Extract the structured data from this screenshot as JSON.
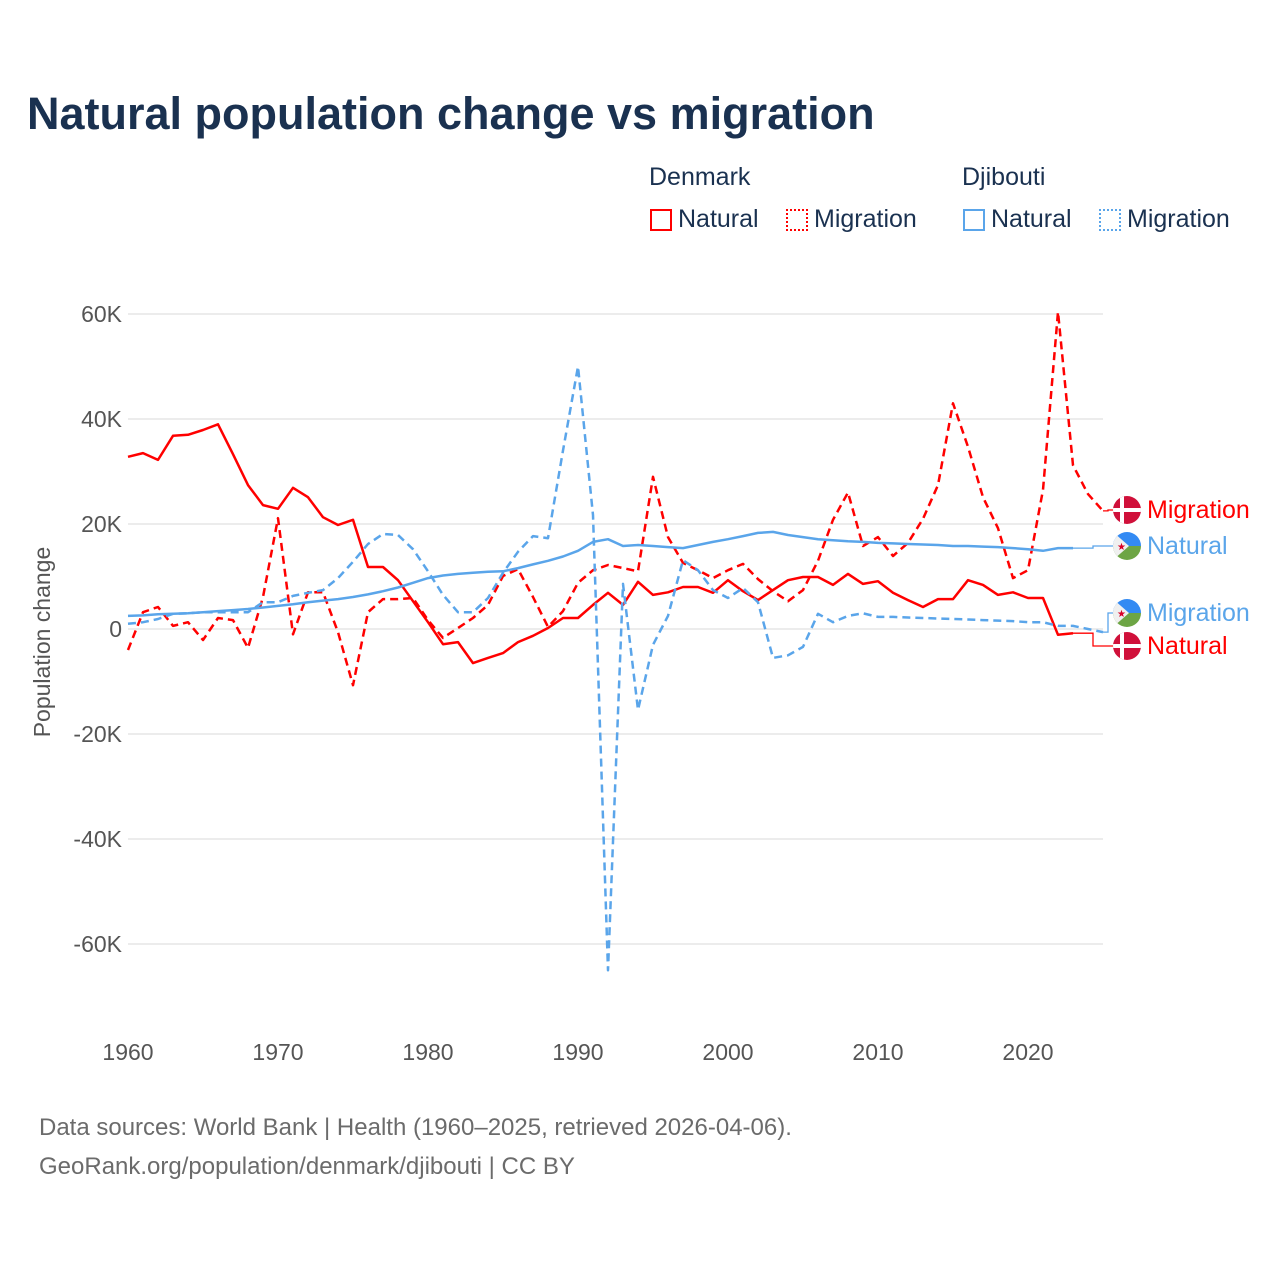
{
  "title": "Natural population change vs migration",
  "legend": {
    "groups": [
      {
        "name": "Denmark",
        "color": "#ff0000",
        "items": [
          "Natural",
          "Migration"
        ]
      },
      {
        "name": "Djibouti",
        "color": "#5aa5ea",
        "items": [
          "Natural",
          "Migration"
        ]
      }
    ]
  },
  "source": {
    "line1": "Data sources: World Bank | Health (1960–2025, retrieved 2026-04-06).",
    "line2": "GeoRank.org/population/denmark/djibouti | CC BY"
  },
  "chart_data": {
    "type": "line",
    "title": "Natural population change vs migration",
    "xlabel": "",
    "ylabel": "Population change",
    "xlim": [
      1960,
      2025
    ],
    "ylim": [
      -70000,
      65000
    ],
    "xticks": [
      1960,
      1970,
      1980,
      1990,
      2000,
      2010,
      2020
    ],
    "yticks": [
      {
        "v": 60000,
        "label": "60K"
      },
      {
        "v": 40000,
        "label": "40K"
      },
      {
        "v": 20000,
        "label": "20K"
      },
      {
        "v": 0,
        "label": "0"
      },
      {
        "v": -20000,
        "label": "-20K"
      },
      {
        "v": -40000,
        "label": "-40K"
      },
      {
        "v": -60000,
        "label": "-60K"
      }
    ],
    "grid": true,
    "legend_position": "top-right",
    "series": [
      {
        "name": "Denmark Natural",
        "end_label": "Migration",
        "country": "Denmark",
        "kind": "Natural",
        "color": "#ff0000",
        "dashed": false,
        "start": 1960,
        "values": [
          32.8,
          33.5,
          32.2,
          36.8,
          37,
          37.9,
          39,
          33.3,
          27.4,
          23.6,
          22.9,
          26.9,
          25.1,
          21.3,
          19.8,
          20.8,
          11.8,
          11.8,
          9.3,
          5.3,
          1.3,
          -2.9,
          -2.5,
          -6.5,
          -5.5,
          -4.6,
          -2.5,
          -1.3,
          0.2,
          2.1,
          2.1,
          4.6,
          6.9,
          4.6,
          9,
          6.5,
          7,
          8,
          8,
          6.9,
          9.3,
          7.2,
          5.5,
          7.4,
          9.3,
          9.9,
          9.9,
          8.4,
          10.5,
          8.6,
          9.1,
          6.9,
          5.5,
          4.2,
          5.7,
          5.7,
          9.3,
          8.4,
          6.5,
          7,
          5.9,
          5.9,
          -1.1,
          -0.8
        ]
      },
      {
        "name": "Denmark Migration",
        "country": "Denmark",
        "kind": "Migration",
        "color": "#ff0000",
        "dashed": true,
        "start": 1960,
        "values": [
          -4,
          3.2,
          4.2,
          0.6,
          1.3,
          -2.1,
          2.1,
          1.7,
          -3.6,
          6.1,
          21.1,
          -1,
          7,
          7,
          -0.6,
          -10.7,
          3.2,
          5.7,
          5.7,
          5.9,
          1.7,
          -1.7,
          0.2,
          2.1,
          4.6,
          10.1,
          11.4,
          6.1,
          0.4,
          3.4,
          8.8,
          11.2,
          12.2,
          11.6,
          11,
          29,
          17.5,
          12.6,
          11.2,
          9.7,
          11.2,
          12.4,
          9.5,
          7.2,
          5.3,
          7.4,
          13,
          20.8,
          26,
          15.8,
          17.5,
          13.9,
          16.4,
          21,
          27.4,
          43,
          34.7,
          25.1,
          19.2,
          9.7,
          11.2,
          26.5,
          60.4,
          31.2,
          25.7,
          22.5
        ]
      },
      {
        "name": "Djibouti Natural",
        "country": "Djibouti",
        "kind": "Natural",
        "color": "#5aa5ea",
        "dashed": false,
        "start": 1960,
        "values": [
          2.5,
          2.6,
          2.8,
          2.9,
          3,
          3.2,
          3.4,
          3.6,
          3.8,
          4.1,
          4.4,
          4.7,
          5.1,
          5.4,
          5.7,
          6.1,
          6.6,
          7.2,
          7.9,
          8.8,
          9.7,
          10.2,
          10.5,
          10.7,
          10.9,
          11,
          11.6,
          12.3,
          13,
          13.8,
          14.9,
          16.6,
          17.1,
          15.8,
          16,
          15.8,
          15.6,
          15.4,
          16,
          16.6,
          17.1,
          17.7,
          18.3,
          18.5,
          17.9,
          17.5,
          17.1,
          16.9,
          16.7,
          16.6,
          16.4,
          16.3,
          16.2,
          16.1,
          16,
          15.8,
          15.8,
          15.7,
          15.6,
          15.4,
          15.2,
          14.9,
          15.4,
          15.4
        ]
      },
      {
        "name": "Djibouti Migration",
        "country": "Djibouti",
        "kind": "Migration",
        "color": "#5aa5ea",
        "dashed": true,
        "start": 1960,
        "values": [
          1,
          1.3,
          1.9,
          2.9,
          3,
          3.2,
          3.2,
          3.2,
          3.2,
          5.1,
          5.1,
          6.3,
          6.9,
          7.4,
          9.7,
          12.8,
          16.2,
          18.1,
          17.9,
          15.2,
          11,
          6.5,
          3.2,
          3.2,
          5.9,
          10.7,
          14.7,
          17.7,
          17.3,
          34,
          50,
          21.7,
          -65,
          8.6,
          -15.4,
          -3,
          2.5,
          13.1,
          11.2,
          7.4,
          5.9,
          7.8,
          5.1,
          -5.5,
          -5,
          -3.4,
          2.9,
          1.3,
          2.5,
          3,
          2.3,
          2.3,
          2.2,
          2.1,
          2,
          1.9,
          1.8,
          1.7,
          1.6,
          1.5,
          1.3,
          1.3,
          0.6,
          0.6,
          0,
          -0.6
        ]
      }
    ],
    "value_unit": "thousands",
    "end_labels": [
      {
        "series": "Denmark Migration",
        "label": "Migration",
        "flag": "denmark",
        "at": 22.5
      },
      {
        "series": "Djibouti Natural",
        "label": "Natural",
        "flag": "djibouti",
        "at": 15.4
      },
      {
        "series": "Djibouti Migration",
        "label": "Migration",
        "flag": "djibouti",
        "at": 3
      },
      {
        "series": "Denmark Natural",
        "label": "Natural",
        "flag": "denmark",
        "at": -3.5
      }
    ]
  }
}
